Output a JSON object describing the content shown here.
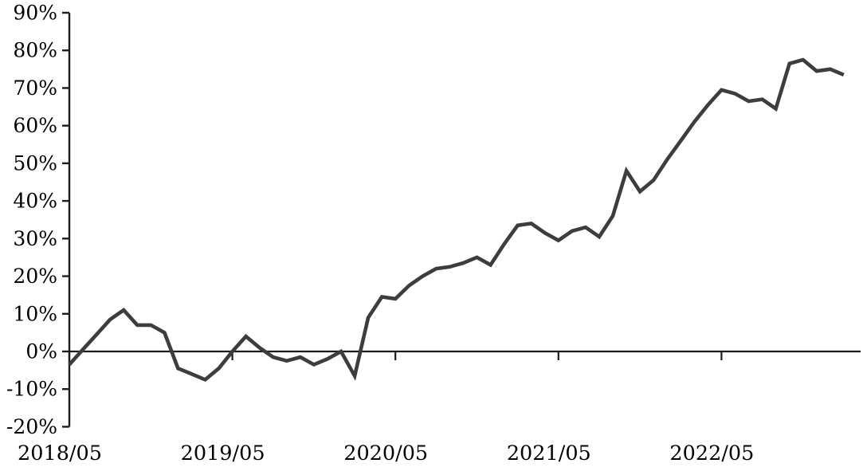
{
  "chart_data": {
    "type": "line",
    "title": "",
    "xlabel": "",
    "ylabel": "",
    "x": [
      "2018/05",
      "2018/06",
      "2018/07",
      "2018/08",
      "2018/09",
      "2018/10",
      "2018/11",
      "2018/12",
      "2019/01",
      "2019/02",
      "2019/03",
      "2019/04",
      "2019/05",
      "2019/06",
      "2019/07",
      "2019/08",
      "2019/09",
      "2019/10",
      "2019/11",
      "2019/12",
      "2020/01",
      "2020/02",
      "2020/03",
      "2020/04",
      "2020/05",
      "2020/06",
      "2020/07",
      "2020/08",
      "2020/09",
      "2020/10",
      "2020/11",
      "2020/12",
      "2021/01",
      "2021/02",
      "2021/03",
      "2021/04",
      "2021/05",
      "2021/06",
      "2021/07",
      "2021/08",
      "2021/09",
      "2021/10",
      "2021/11",
      "2021/12",
      "2022/01",
      "2022/02",
      "2022/03",
      "2022/04",
      "2022/05",
      "2022/06",
      "2022/07",
      "2022/08",
      "2022/09",
      "2022/10",
      "2022/11",
      "2022/12",
      "2023/01",
      "2023/02"
    ],
    "series": [
      {
        "name": "cumulative-return-pct",
        "values": [
          -3.5,
          0.5,
          4.5,
          8.5,
          11,
          7,
          7,
          5,
          -4.5,
          -6,
          -7.5,
          -4.5,
          0,
          4,
          1,
          -1.5,
          -2.5,
          -1.5,
          -3.5,
          -2,
          0,
          -6.5,
          9,
          14.5,
          14,
          17.5,
          20,
          22,
          22.5,
          23.5,
          25,
          23,
          28.5,
          33.5,
          34,
          31.5,
          29.5,
          32,
          33,
          30.5,
          36,
          48,
          42.5,
          45.5,
          51,
          56,
          61,
          65.5,
          69.5,
          68.5,
          66.5,
          67,
          64.5,
          76.5,
          77.5,
          74.5,
          75,
          73.5
        ]
      }
    ],
    "x_tick_labels": [
      "2018/05",
      "2019/05",
      "2020/05",
      "2021/05",
      "2022/05"
    ],
    "y_ticks": [
      90,
      80,
      70,
      60,
      50,
      40,
      30,
      20,
      10,
      0,
      -10,
      -20
    ],
    "y_tick_suffix": "%",
    "ylim": [
      -20,
      90
    ],
    "grid": false,
    "legend": "none",
    "zero_baseline": true,
    "line_color": "#3d3d3d",
    "axis_color": "#1c1c1c",
    "text_color": "#000000",
    "background": "#ffffff"
  }
}
